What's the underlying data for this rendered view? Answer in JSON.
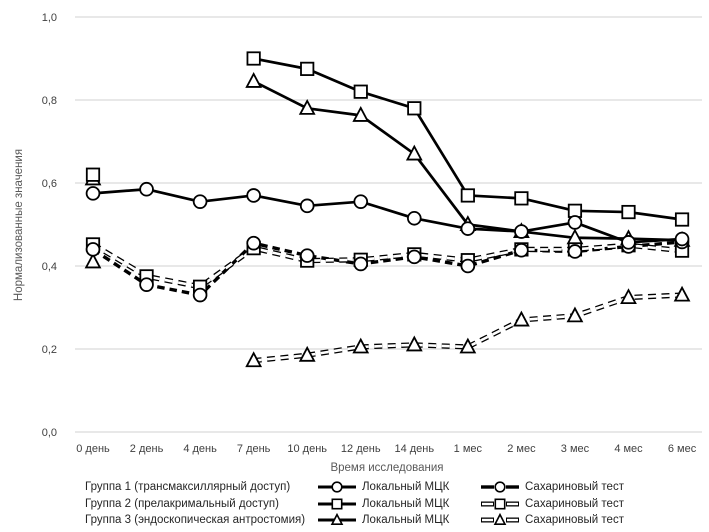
{
  "chart_data": {
    "type": "line",
    "title": "",
    "xlabel": "Время исследования",
    "ylabel": "Нормализованные значения",
    "x_categories": [
      "0 день",
      "2 день",
      "4 день",
      "7 день",
      "10 день",
      "12 день",
      "14 день",
      "1 мес",
      "2 мес",
      "3 мес",
      "4 мес",
      "6 мес"
    ],
    "y_ticks": [
      {
        "v": 0.0,
        "label": "0,0"
      },
      {
        "v": 0.2,
        "label": "0,2"
      },
      {
        "v": 0.4,
        "label": "0,4"
      },
      {
        "v": 0.6,
        "label": "0,6"
      },
      {
        "v": 0.8,
        "label": "0,8"
      },
      {
        "v": 1.0,
        "label": "1,0"
      }
    ],
    "ylim": [
      0,
      1
    ],
    "grid": "horizontal-light",
    "legend_position": "bottom",
    "series": [
      {
        "name": "Группа 1 — Локальный МЦК",
        "group": "Группа 1 (трансмаксиллярный доступ)",
        "test": "Локальный МЦК",
        "marker": "circle",
        "line": "solid",
        "values": [
          0.575,
          0.585,
          0.555,
          0.57,
          0.545,
          0.555,
          0.515,
          0.49,
          0.483,
          0.505,
          0.457,
          0.465
        ]
      },
      {
        "name": "Группа 1 — Сахариновый тест",
        "group": "Группа 1 (трансмаксиллярный доступ)",
        "test": "Сахариновый тест",
        "marker": "circle",
        "line": "dashed",
        "values": [
          0.44,
          0.355,
          0.33,
          0.455,
          0.425,
          0.405,
          0.422,
          0.4,
          0.438,
          0.435,
          0.447,
          0.458
        ]
      },
      {
        "name": "Группа 2 — Локальный МЦК",
        "group": "Группа 2 (прелакримальный доступ)",
        "test": "Локальный МЦК",
        "marker": "square",
        "line": "solid",
        "values": [
          0.62,
          null,
          null,
          0.9,
          0.875,
          0.82,
          0.78,
          0.57,
          0.563,
          0.533,
          0.53,
          0.512
        ]
      },
      {
        "name": "Группа 2 — Сахариновый тест",
        "group": "Группа 2 (прелакримальный доступ)",
        "test": "Сахариновый тест",
        "marker": "square",
        "line": "dashed-hollow",
        "values": [
          0.452,
          0.375,
          0.35,
          0.443,
          0.413,
          0.415,
          0.428,
          0.414,
          0.44,
          0.44,
          0.45,
          0.437
        ]
      },
      {
        "name": "Группа 3 — Локальный МЦК",
        "group": "Группа 3 (эндоскопическая антростомия)",
        "test": "Локальный МЦК",
        "marker": "triangle",
        "line": "solid",
        "values": [
          0.61,
          null,
          null,
          0.845,
          0.78,
          0.763,
          0.67,
          0.5,
          0.483,
          0.468,
          0.466,
          0.462
        ]
      },
      {
        "name": "Группа 3 — Сахариновый тест",
        "group": "Группа 3 (эндоскопическая антростомия)",
        "test": "Сахариновый тест",
        "marker": "triangle",
        "line": "dashed-hollow",
        "values": [
          0.41,
          null,
          null,
          0.172,
          0.185,
          0.205,
          0.21,
          0.205,
          0.27,
          0.28,
          0.324,
          0.33
        ]
      }
    ],
    "colors": {
      "line": "#000000",
      "marker_fill": "#ffffff",
      "grid": "#d2d2d2",
      "tick_text": "#3f3f3f",
      "axis_title_text": "#595959",
      "legend_text": "#262626",
      "background": "#ffffff"
    }
  },
  "legend": {
    "rows": [
      {
        "group": "Группа 1 (трансмаксиллярный доступ)",
        "mck_label": "Локальный МЦК",
        "sach_label": "Сахариновый тест"
      },
      {
        "group": "Группа 2 (прелакримальный доступ)",
        "mck_label": "Локальный МЦК",
        "sach_label": "Сахариновый тест"
      },
      {
        "group": "Группа 3 (эндоскопическая антростомия)",
        "mck_label": "Локальный МЦК",
        "sach_label": "Сахариновый тест"
      }
    ]
  }
}
